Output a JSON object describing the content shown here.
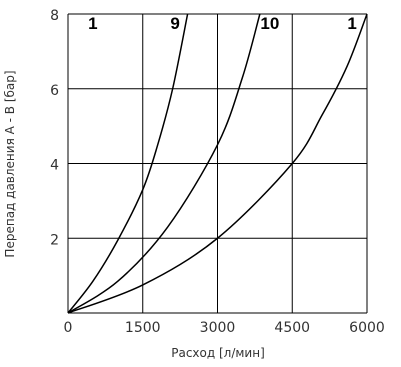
{
  "chart_data": {
    "type": "line",
    "xlabel": "Расход [л/мин]",
    "ylabel": "Перепад давления A - B [бар]",
    "xlim": [
      0,
      6000
    ],
    "ylim": [
      0,
      8
    ],
    "x_ticks": [
      "0",
      "1500",
      "3000",
      "4500",
      "6000"
    ],
    "y_ticks": [
      "0",
      "2",
      "4",
      "6",
      "8"
    ],
    "grid": true,
    "colors": {
      "curve": "#000000",
      "grid": "#000000",
      "text": "#333333"
    },
    "series": [
      {
        "label": "1",
        "x": [
          0,
          500,
          1000,
          1500,
          1800,
          2100,
          2400
        ],
        "y": [
          0,
          0.85,
          1.95,
          3.3,
          4.5,
          6.0,
          8.0
        ]
      },
      {
        "label": "9",
        "x": [
          0,
          1000,
          2000,
          3000,
          3500,
          3850
        ],
        "y": [
          0,
          0.85,
          2.3,
          4.5,
          6.3,
          8.0
        ]
      },
      {
        "label": "10",
        "x": [
          0,
          1500,
          3000,
          4500,
          5100,
          5600,
          6000
        ],
        "y": [
          0,
          0.75,
          2.0,
          4.0,
          5.3,
          6.6,
          8.0
        ]
      }
    ],
    "annotations": [
      {
        "text": "1",
        "x": 500,
        "y": 7.6
      },
      {
        "text": "9",
        "x": 2150,
        "y": 7.6
      },
      {
        "text": "10",
        "x": 4050,
        "y": 7.6
      },
      {
        "text": "1",
        "x": 5700,
        "y": 7.6
      }
    ]
  }
}
